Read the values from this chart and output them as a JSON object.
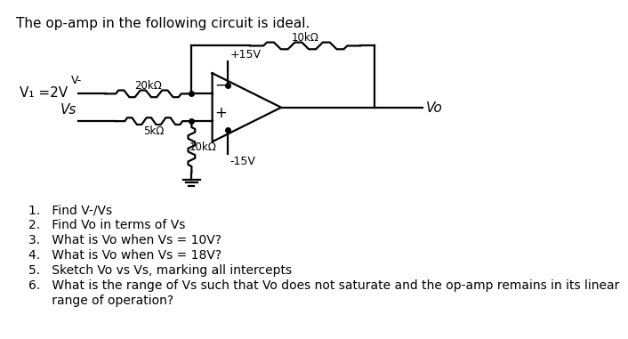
{
  "title": "The op-amp in the following circuit is ideal.",
  "title_fontsize": 11,
  "background_color": "#ffffff",
  "questions": [
    "1.   Find V-/Vs",
    "2.   Find Vo in terms of Vs",
    "3.   What is Vo when Vs = 10V?",
    "4.   What is Vo when Vs = 18V?",
    "5.   Sketch Vo vs Vs, marking all intercepts",
    "6.   What is the range of Vs such that Vo does not saturate and the op-amp remains in its linear",
    "      range of operation?"
  ],
  "circuit": {
    "vi_label": "V₁ =2V",
    "r1_label": "20kΩ",
    "r2_label": "10kΩ",
    "r3_label": "5kΩ",
    "r4_label": "10kΩ",
    "vcc_label": "+15V",
    "vee_label": "-15V",
    "vo_label": "Vo",
    "vs_label": "Vs",
    "vminus_label": "V-"
  },
  "lw": 1.6
}
